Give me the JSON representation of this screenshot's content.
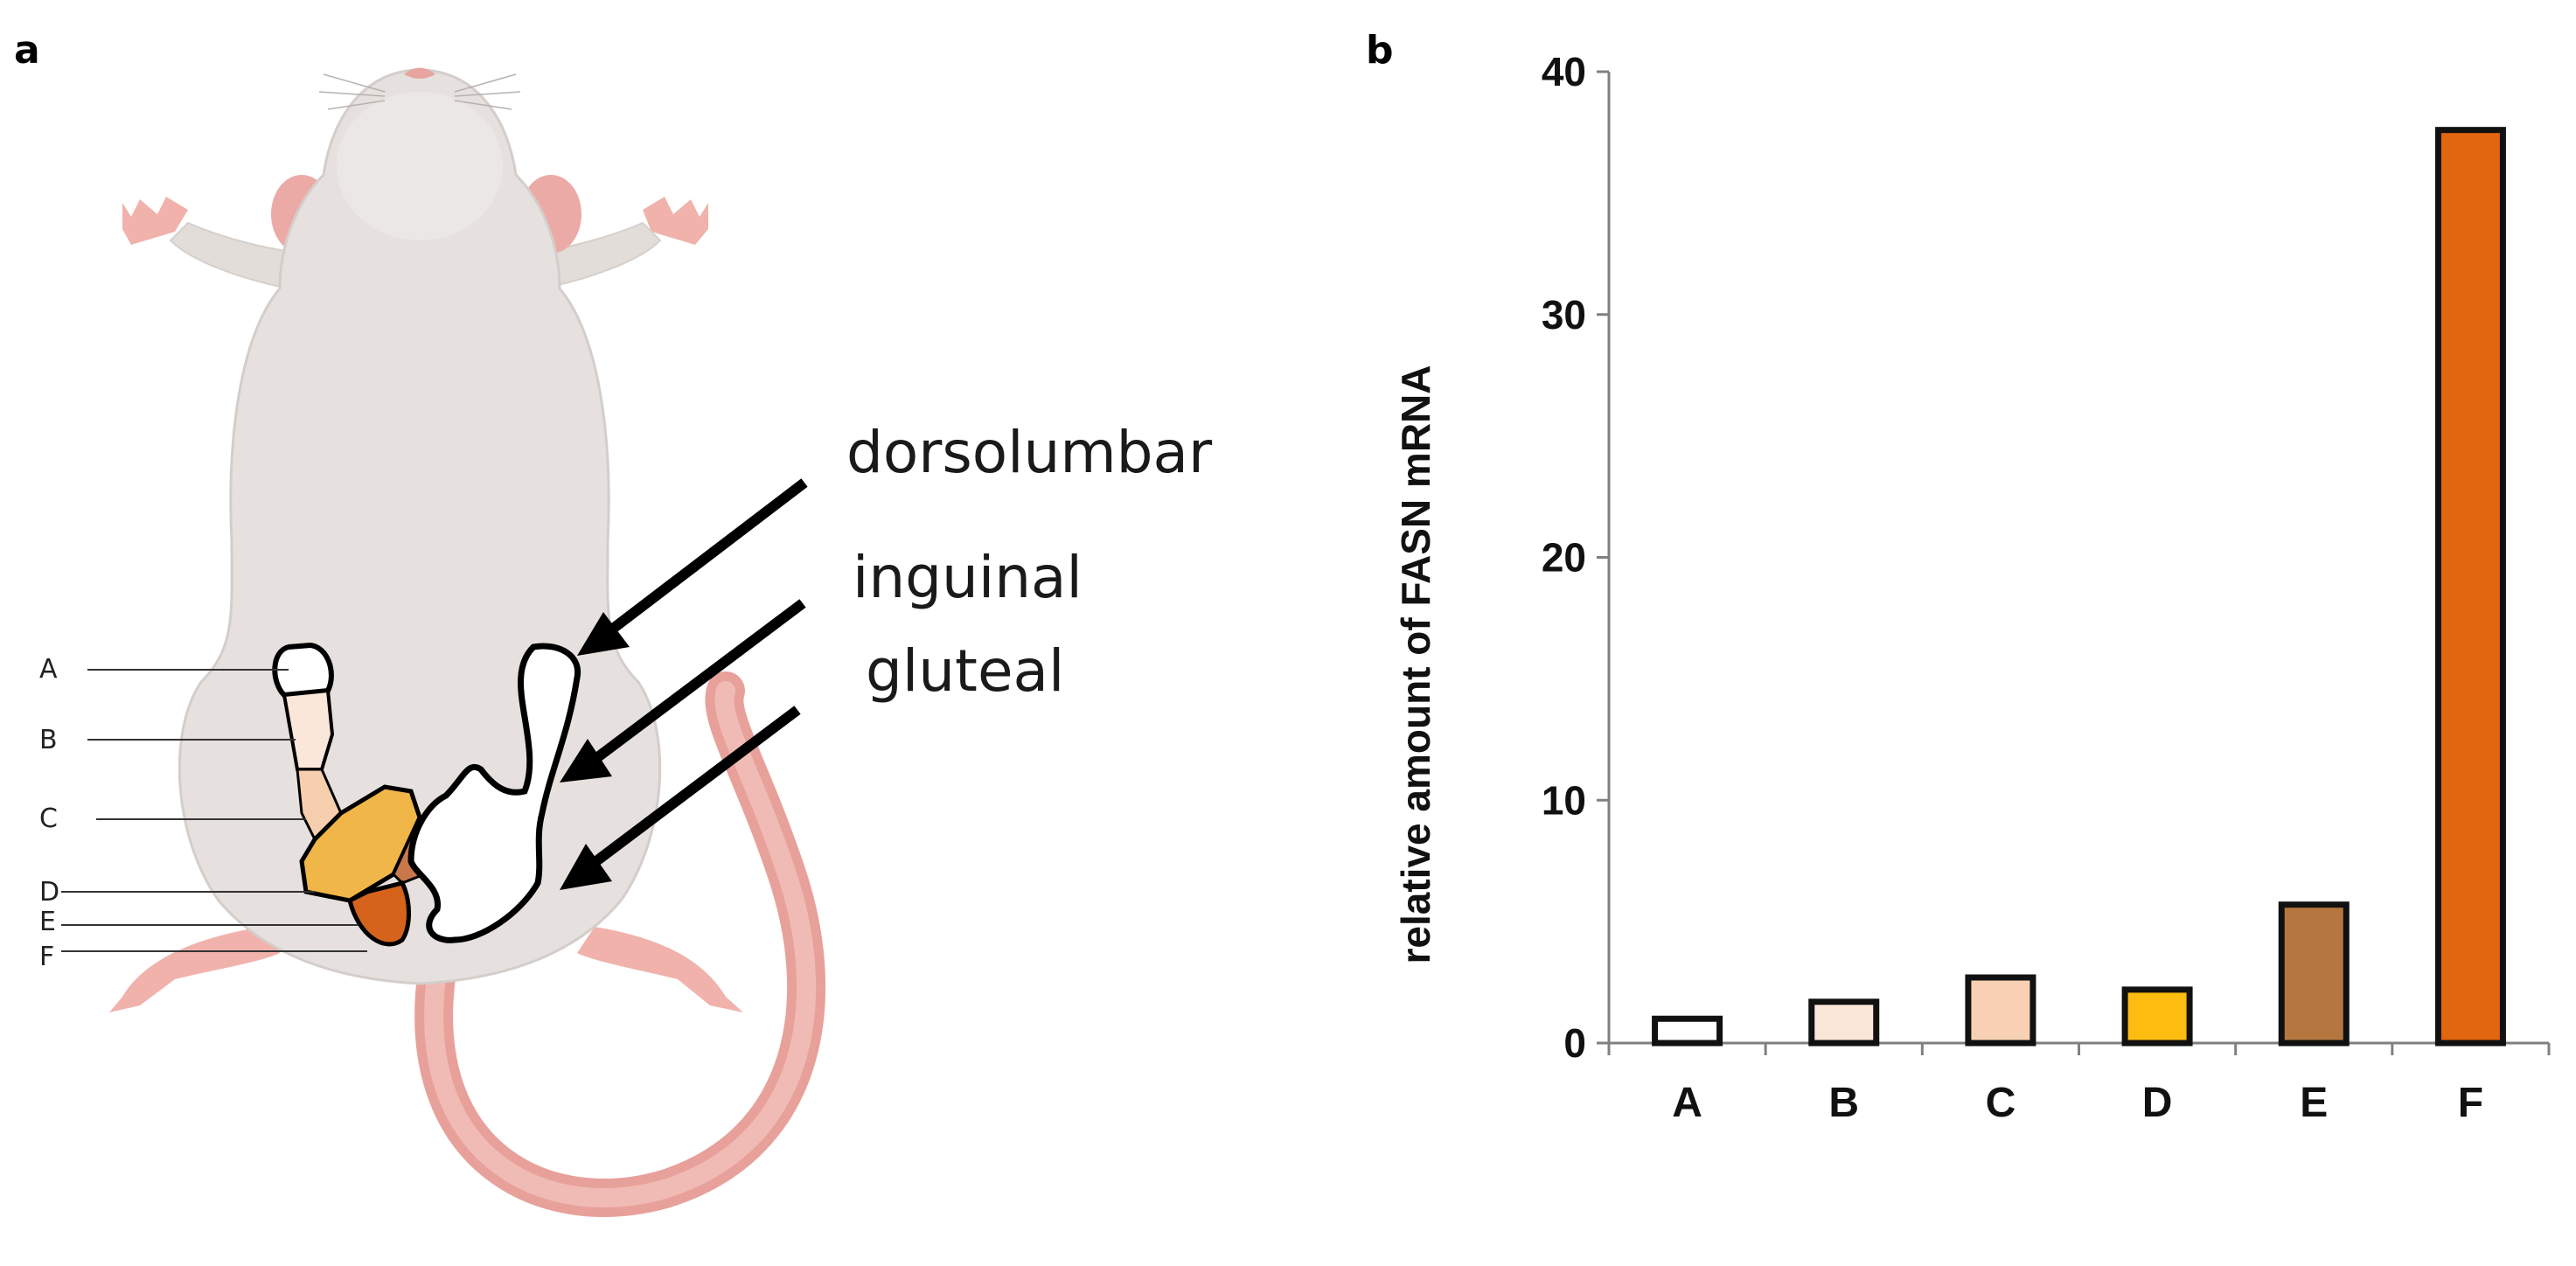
{
  "panels": {
    "a": {
      "letter": "a"
    },
    "b": {
      "letter": "b"
    }
  },
  "illustration": {
    "depot_labels": [
      "dorsolumbar",
      "inguinal",
      "gluteal"
    ],
    "region_letters": [
      "A",
      "B",
      "C",
      "D",
      "E",
      "F"
    ],
    "region_colors": [
      "#ffffff",
      "#fbe7da",
      "#f6cfae",
      "#f0b648",
      "#c8784a",
      "#d5631c"
    ]
  },
  "chart_data": {
    "type": "bar",
    "categories": [
      "A",
      "B",
      "C",
      "D",
      "E",
      "F"
    ],
    "values": [
      1.0,
      1.7,
      2.7,
      2.2,
      5.7,
      37.6
    ],
    "colors": [
      "#ffffff",
      "#fbe7da",
      "#f8d1b4",
      "#fdbc0f",
      "#b5773f",
      "#e2650f"
    ],
    "ylabel": "relative amount of FASN mRNA",
    "xlabel": "",
    "title": "",
    "ylim": [
      0,
      40
    ],
    "yticks": [
      0,
      10,
      20,
      30,
      40
    ],
    "grid": false
  }
}
